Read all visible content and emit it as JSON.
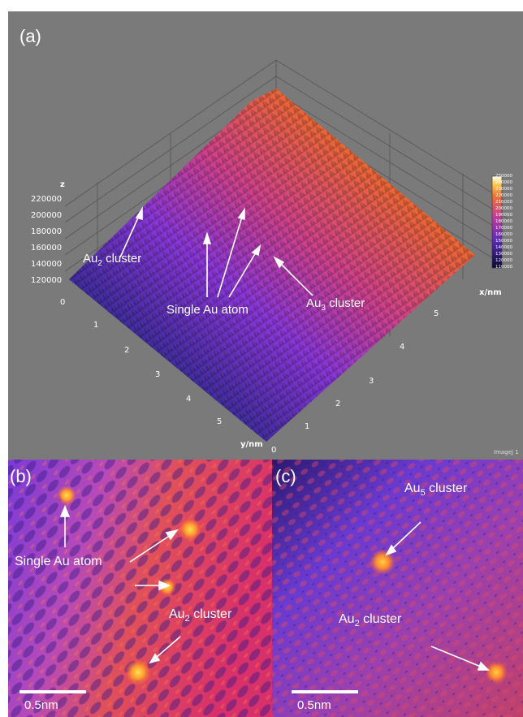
{
  "panel_a": {
    "letter": "(a)",
    "z_axis_label": "z",
    "z_ticks": [
      "220000",
      "200000",
      "180000",
      "160000",
      "140000",
      "120000",
      "0"
    ],
    "y_axis_label": "y/nm",
    "y_ticks": [
      "1",
      "2",
      "3",
      "4",
      "5",
      "0"
    ],
    "x_axis_label": "x/nm",
    "x_ticks": [
      "5",
      "4",
      "3",
      "2",
      "1"
    ],
    "colorbar_ticks": [
      "250000",
      "240000",
      "230000",
      "220000",
      "210000",
      "200000",
      "190000",
      "180000",
      "170000",
      "160000",
      "150000",
      "140000",
      "130000",
      "120000",
      "110000"
    ],
    "watermark": "ImageJ 1",
    "annotations": {
      "au2_cluster": "Au",
      "au2_sub": "2",
      "au2_suffix": " cluster",
      "single_au_atom": "Single Au atom",
      "au3_cluster": "Au",
      "au3_sub": "3",
      "au3_suffix": " cluster"
    }
  },
  "panel_b": {
    "letter": "(b)",
    "single_au_atom": "Single Au atom",
    "au2_prefix": "Au",
    "au2_sub": "2",
    "au2_suffix": " cluster",
    "scale_label": "0.5nm"
  },
  "panel_c": {
    "letter": "(c)",
    "au5_prefix": "Au",
    "au5_sub": "5",
    "au5_suffix": " cluster",
    "au2_prefix": "Au",
    "au2_sub": "2",
    "au2_suffix": " cluster",
    "scale_label": "0.5nm"
  },
  "colors": {
    "grey_background": "#7a7a7a",
    "surface_low": "#1a1450",
    "surface_mid": "#7a2fd0",
    "surface_high": "#f07a20",
    "peak": "#ffd040",
    "annotation": "#ffffff"
  }
}
